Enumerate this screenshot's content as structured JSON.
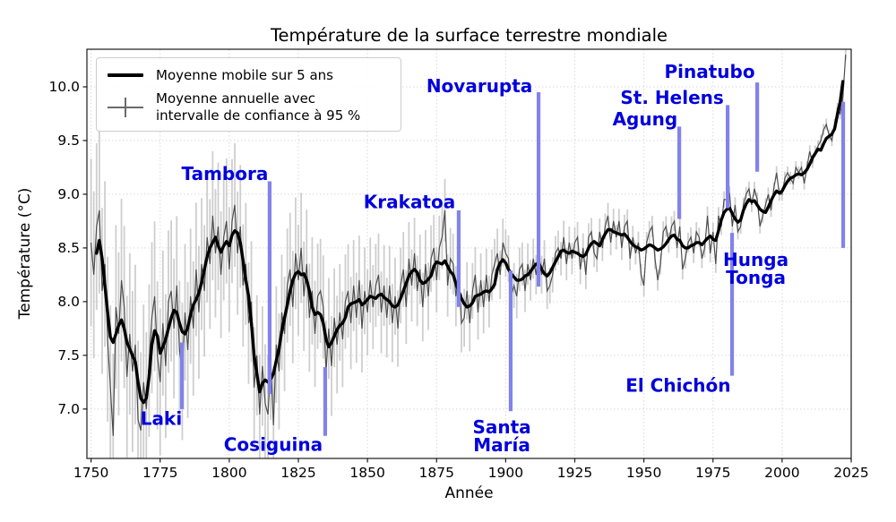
{
  "title": "Température de la surface terrestre mondiale",
  "axes": {
    "x_label": "Année",
    "y_label": "Température (°C)",
    "x_ticks": [
      1750,
      1775,
      1800,
      1825,
      1850,
      1875,
      1900,
      1925,
      1950,
      1975,
      2000,
      2025
    ],
    "y_ticks": [
      {
        "v": 7.0,
        "label": "7.0"
      },
      {
        "v": 7.5,
        "label": "7.5"
      },
      {
        "v": 8.0,
        "label": "8.0"
      },
      {
        "v": 8.5,
        "label": "8.5"
      },
      {
        "v": 9.0,
        "label": "9.0"
      },
      {
        "v": 9.5,
        "label": "9.5"
      },
      {
        "v": 10.0,
        "label": "10.0"
      }
    ],
    "xlim": [
      1748.5,
      2025
    ],
    "ylim": [
      6.54,
      10.35
    ],
    "grid": true
  },
  "legend": {
    "items": [
      {
        "sample": "thick-black-line",
        "label": "Moyenne mobile sur 5 ans"
      },
      {
        "sample": "gray-errorbar",
        "label": "Moyenne annuelle avec\nintervalle de confiance à 95 %"
      }
    ]
  },
  "colors": {
    "smooth": "#000000",
    "annual": "#4d4d4d",
    "ci": "#c3c3c3",
    "grid": "#d9d9d9",
    "annotation_line": "#8282ec",
    "annotation_text": "#0000dd",
    "spine": "#1a1a1a"
  },
  "chart_data": {
    "type": "line",
    "title": "Température de la surface terrestre mondiale",
    "xlabel": "Année",
    "ylabel": "Température (°C)",
    "xlim": [
      1748.5,
      2025
    ],
    "ylim": [
      6.54,
      10.35
    ],
    "grid": true,
    "legend_position": "upper left",
    "series": [
      {
        "name": "Moyenne mobile sur 5 ans",
        "style": "thick-black",
        "start_year": 1752,
        "values": [
          8.45,
          8.57,
          8.4,
          8.15,
          7.9,
          7.67,
          7.62,
          7.7,
          7.78,
          7.83,
          7.75,
          7.62,
          7.56,
          7.5,
          7.44,
          7.25,
          7.1,
          7.06,
          7.1,
          7.3,
          7.6,
          7.73,
          7.68,
          7.52,
          7.58,
          7.65,
          7.75,
          7.85,
          7.92,
          7.9,
          7.8,
          7.72,
          7.7,
          7.76,
          7.88,
          7.97,
          8.02,
          8.08,
          8.18,
          8.3,
          8.42,
          8.5,
          8.55,
          8.6,
          8.52,
          8.46,
          8.52,
          8.56,
          8.52,
          8.62,
          8.66,
          8.64,
          8.55,
          8.38,
          8.2,
          8.05,
          7.8,
          7.5,
          7.33,
          7.16,
          7.24,
          7.27,
          7.25,
          7.28,
          7.33,
          7.45,
          7.56,
          7.73,
          7.85,
          7.97,
          8.1,
          8.2,
          8.26,
          8.28,
          8.25,
          8.26,
          8.2,
          8.1,
          7.95,
          7.88,
          7.9,
          7.88,
          7.8,
          7.65,
          7.58,
          7.62,
          7.68,
          7.74,
          7.78,
          7.8,
          7.85,
          7.95,
          7.98,
          7.99,
          8.0,
          8.02,
          7.97,
          7.99,
          8.02,
          8.05,
          8.04,
          8.03,
          8.06,
          8.07,
          8.04,
          8.02,
          8.0,
          7.96,
          7.95,
          7.97,
          8.03,
          8.1,
          8.17,
          8.24,
          8.28,
          8.3,
          8.27,
          8.2,
          8.17,
          8.18,
          8.21,
          8.24,
          8.33,
          8.37,
          8.36,
          8.35,
          8.38,
          8.33,
          8.28,
          8.25,
          8.17,
          8.1,
          8.03,
          7.98,
          7.95,
          7.96,
          7.99,
          8.05,
          8.06,
          8.07,
          8.09,
          8.1,
          8.09,
          8.12,
          8.16,
          8.3,
          8.36,
          8.39,
          8.36,
          8.3,
          8.26,
          8.23,
          8.2,
          8.2,
          8.21,
          8.24,
          8.25,
          8.28,
          8.32,
          8.35,
          8.36,
          8.3,
          8.26,
          8.24,
          8.27,
          8.32,
          8.37,
          8.42,
          8.47,
          8.48,
          8.46,
          8.45,
          8.47,
          8.46,
          8.45,
          8.43,
          8.42,
          8.44,
          8.5,
          8.54,
          8.56,
          8.54,
          8.52,
          8.58,
          8.63,
          8.67,
          8.67,
          8.65,
          8.64,
          8.63,
          8.62,
          8.63,
          8.6,
          8.56,
          8.53,
          8.51,
          8.5,
          8.48,
          8.49,
          8.51,
          8.53,
          8.52,
          8.5,
          8.48,
          8.49,
          8.51,
          8.54,
          8.58,
          8.61,
          8.62,
          8.58,
          8.57,
          8.52,
          8.5,
          8.5,
          8.52,
          8.53,
          8.55,
          8.55,
          8.53,
          8.56,
          8.59,
          8.61,
          8.58,
          8.57,
          8.66,
          8.76,
          8.83,
          8.86,
          8.87,
          8.82,
          8.77,
          8.74,
          8.76,
          8.85,
          8.91,
          8.95,
          8.93,
          8.94,
          8.9,
          8.86,
          8.84,
          8.83,
          8.88,
          8.94,
          8.99,
          9.03,
          9.01,
          9.03,
          9.08,
          9.12,
          9.15,
          9.16,
          9.18,
          9.19,
          9.18,
          9.2,
          9.23,
          9.28,
          9.34,
          9.38,
          9.42,
          9.41,
          9.47,
          9.52,
          9.54,
          9.56,
          9.61,
          9.74,
          9.86,
          10.05
        ]
      },
      {
        "name": "Moyenne annuelle avec intervalle de confiance à 95 %",
        "style": "thin-gray-errorbar",
        "start_year": 1750,
        "values": [
          8.55,
          8.25,
          8.7,
          8.85,
          8.1,
          8.35,
          7.65,
          7.2,
          6.75,
          7.95,
          7.7,
          8.2,
          7.95,
          7.3,
          7.7,
          7.35,
          7.6,
          6.9,
          6.8,
          7.25,
          7.0,
          7.45,
          7.85,
          8.05,
          7.5,
          7.25,
          7.8,
          7.4,
          8.0,
          8.1,
          7.75,
          8.15,
          7.55,
          7.35,
          7.9,
          7.55,
          8.05,
          7.75,
          8.3,
          7.9,
          8.35,
          8.1,
          8.6,
          8.35,
          8.8,
          8.45,
          8.7,
          8.25,
          8.6,
          8.75,
          8.3,
          8.75,
          8.9,
          8.45,
          8.7,
          8.15,
          8.35,
          7.8,
          8.0,
          7.2,
          7.5,
          6.95,
          7.4,
          7.05,
          6.95,
          7.45,
          6.85,
          7.6,
          7.35,
          7.9,
          7.7,
          8.15,
          8.3,
          7.95,
          8.45,
          8.2,
          8.5,
          8.05,
          8.35,
          7.85,
          8.1,
          7.7,
          8.05,
          8.1,
          7.95,
          7.35,
          7.75,
          7.4,
          7.85,
          7.6,
          7.9,
          7.65,
          8.0,
          8.1,
          7.8,
          8.15,
          7.85,
          8.2,
          7.75,
          8.1,
          7.9,
          8.2,
          7.95,
          8.15,
          8.25,
          7.9,
          8.15,
          7.85,
          8.15,
          7.8,
          8.05,
          7.75,
          8.15,
          8.3,
          7.95,
          8.4,
          8.15,
          8.45,
          8.1,
          8.3,
          7.95,
          8.35,
          8.05,
          8.4,
          8.5,
          8.2,
          8.5,
          8.6,
          8.85,
          8.15,
          8.4,
          8.35,
          8.05,
          8.25,
          7.8,
          7.85,
          8.1,
          7.8,
          8.1,
          8.25,
          7.9,
          8.2,
          7.95,
          8.25,
          8.0,
          8.25,
          8.35,
          8.45,
          8.25,
          8.55,
          8.45,
          8.4,
          8.05,
          8.15,
          8.05,
          8.3,
          8.35,
          8.1,
          8.35,
          8.2,
          8.4,
          8.25,
          8.45,
          8.25,
          8.4,
          8.1,
          8.15,
          8.25,
          8.45,
          8.5,
          8.4,
          8.6,
          8.35,
          8.55,
          8.4,
          8.55,
          8.6,
          8.3,
          8.5,
          8.25,
          8.6,
          8.65,
          8.45,
          8.4,
          8.65,
          8.5,
          8.7,
          8.8,
          8.55,
          8.75,
          8.6,
          8.75,
          8.5,
          8.7,
          8.75,
          8.4,
          8.6,
          8.45,
          8.55,
          8.25,
          8.15,
          8.55,
          8.65,
          8.7,
          8.4,
          8.2,
          8.35,
          8.65,
          8.7,
          8.55,
          8.7,
          8.75,
          8.5,
          8.7,
          8.3,
          8.4,
          8.55,
          8.6,
          8.45,
          8.65,
          8.6,
          8.4,
          8.5,
          8.8,
          8.45,
          8.65,
          8.35,
          8.8,
          8.7,
          8.95,
          8.95,
          9.0,
          8.7,
          8.9,
          8.65,
          8.7,
          8.9,
          9.0,
          9.05,
          8.9,
          9.05,
          8.95,
          8.7,
          8.8,
          8.9,
          9.0,
          8.85,
          9.05,
          9.2,
          9.0,
          9.0,
          9.15,
          9.2,
          9.15,
          9.1,
          9.25,
          9.2,
          9.25,
          9.1,
          9.25,
          9.4,
          9.3,
          9.4,
          9.45,
          9.5,
          9.6,
          9.65,
          9.55,
          9.5,
          9.65,
          9.8,
          9.75,
          9.9,
          10.3
        ]
      }
    ],
    "ci_half_width_keypoints": [
      [
        1750,
        0.78
      ],
      [
        1765,
        0.75
      ],
      [
        1780,
        0.65
      ],
      [
        1800,
        0.58
      ],
      [
        1815,
        0.55
      ],
      [
        1830,
        0.5
      ],
      [
        1850,
        0.4
      ],
      [
        1870,
        0.32
      ],
      [
        1885,
        0.27
      ],
      [
        1900,
        0.22
      ],
      [
        1915,
        0.17
      ],
      [
        1930,
        0.13
      ],
      [
        1950,
        0.1
      ],
      [
        1970,
        0.09
      ],
      [
        1985,
        0.07
      ],
      [
        2000,
        0.06
      ],
      [
        2023,
        0.05
      ]
    ],
    "annotations": [
      {
        "name": "Laki",
        "lines": [
          "Laki"
        ],
        "line_x_year": 1782.9,
        "line_top": 7.62,
        "line_bottom": 7.0,
        "label_x_year": 1775.4,
        "label_y": 6.91
      },
      {
        "name": "Tambora",
        "lines": [
          "Tambora"
        ],
        "line_x_year": 1814.6,
        "line_top": 9.12,
        "line_bottom": 7.14,
        "label_x_year": 1798.4,
        "label_y": 9.19
      },
      {
        "name": "Cosiguina",
        "lines": [
          "Cosiguina"
        ],
        "line_x_year": 1834.7,
        "line_top": 7.39,
        "line_bottom": 6.75,
        "label_x_year": 1815.9,
        "label_y": 6.67
      },
      {
        "name": "Krakatoa",
        "lines": [
          "Krakatoa"
        ],
        "line_x_year": 1883.0,
        "line_top": 8.85,
        "line_bottom": 7.95,
        "label_x_year": 1865.2,
        "label_y": 8.93
      },
      {
        "name": "Santa María",
        "lines": [
          "Santa",
          "María"
        ],
        "line_x_year": 1901.8,
        "line_top": 8.29,
        "line_bottom": 6.98,
        "label_x_year": 1898.6,
        "label_y": 6.83
      },
      {
        "name": "Novarupta",
        "lines": [
          "Novarupta"
        ],
        "line_x_year": 1911.9,
        "line_top": 9.95,
        "line_bottom": 8.14,
        "label_x_year": 1890.5,
        "label_y": 10.01
      },
      {
        "name": "Agung",
        "lines": [
          "Agung"
        ],
        "line_x_year": 1962.8,
        "line_top": 9.63,
        "line_bottom": 8.77,
        "label_x_year": 1950.4,
        "label_y": 9.7
      },
      {
        "name": "St. Helens",
        "lines": [
          "St. Helens"
        ],
        "line_x_year": 1980.3,
        "line_top": 9.83,
        "line_bottom": 8.87,
        "label_x_year": 1960.2,
        "label_y": 9.9
      },
      {
        "name": "El Chichón",
        "lines": [
          "El Chichón"
        ],
        "line_x_year": 1981.9,
        "line_top": 8.64,
        "line_bottom": 7.31,
        "label_x_year": 1962.4,
        "label_y": 7.22
      },
      {
        "name": "Pinatubo",
        "lines": [
          "Pinatubo"
        ],
        "line_x_year": 1991.0,
        "line_top": 10.04,
        "line_bottom": 9.21,
        "label_x_year": 1973.8,
        "label_y": 10.14
      },
      {
        "name": "Hunga Tonga",
        "lines": [
          "Hunga",
          "Tonga"
        ],
        "line_x_year": 2022.1,
        "line_top": 9.86,
        "line_bottom": 8.5,
        "label_x_year": 1990.5,
        "label_y": 8.39
      }
    ]
  }
}
